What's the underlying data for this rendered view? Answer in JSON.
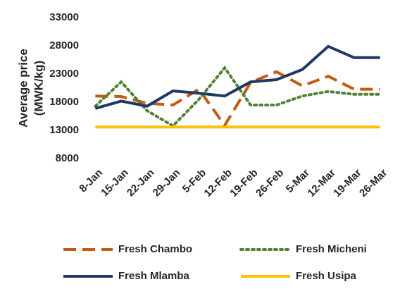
{
  "chart_data": {
    "type": "line",
    "ylabel": [
      "Average price",
      "(MWK/kg)"
    ],
    "categories": [
      "8-Jan",
      "15-Jan",
      "22-Jan",
      "29-Jan",
      "5-Feb",
      "12-Feb",
      "19-Feb",
      "26-Feb",
      "5-Mar",
      "12-Mar",
      "19-Mar",
      "26-Mar"
    ],
    "series": [
      {
        "name": "Fresh Chambo",
        "color": "#c55a11",
        "dash": "dashed",
        "values": [
          19100,
          19000,
          17800,
          17500,
          20300,
          13900,
          21500,
          23400,
          20900,
          22600,
          20300,
          20300
        ]
      },
      {
        "name": "Fresh Micheni",
        "color": "#548235",
        "dash": "dotted",
        "values": [
          17300,
          21600,
          16500,
          13800,
          18500,
          24100,
          17500,
          17500,
          19100,
          19900,
          19400,
          19400
        ]
      },
      {
        "name": "Fresh Mlamba",
        "color": "#203864",
        "dash": "solid",
        "values": [
          16900,
          18200,
          17300,
          20000,
          19600,
          19100,
          21600,
          22000,
          23800,
          27900,
          25900,
          25900
        ]
      },
      {
        "name": "Fresh Usipa",
        "color": "#ffc000",
        "dash": "solid",
        "values": [
          13600,
          13600,
          13600,
          13600,
          13600,
          13600,
          13600,
          13600,
          13600,
          13600,
          13600,
          13600
        ]
      }
    ],
    "ylim": [
      8000,
      33000
    ],
    "yticks": [
      8000,
      13000,
      18000,
      23000,
      28000,
      33000
    ],
    "grid": false,
    "legend": "bottom"
  }
}
